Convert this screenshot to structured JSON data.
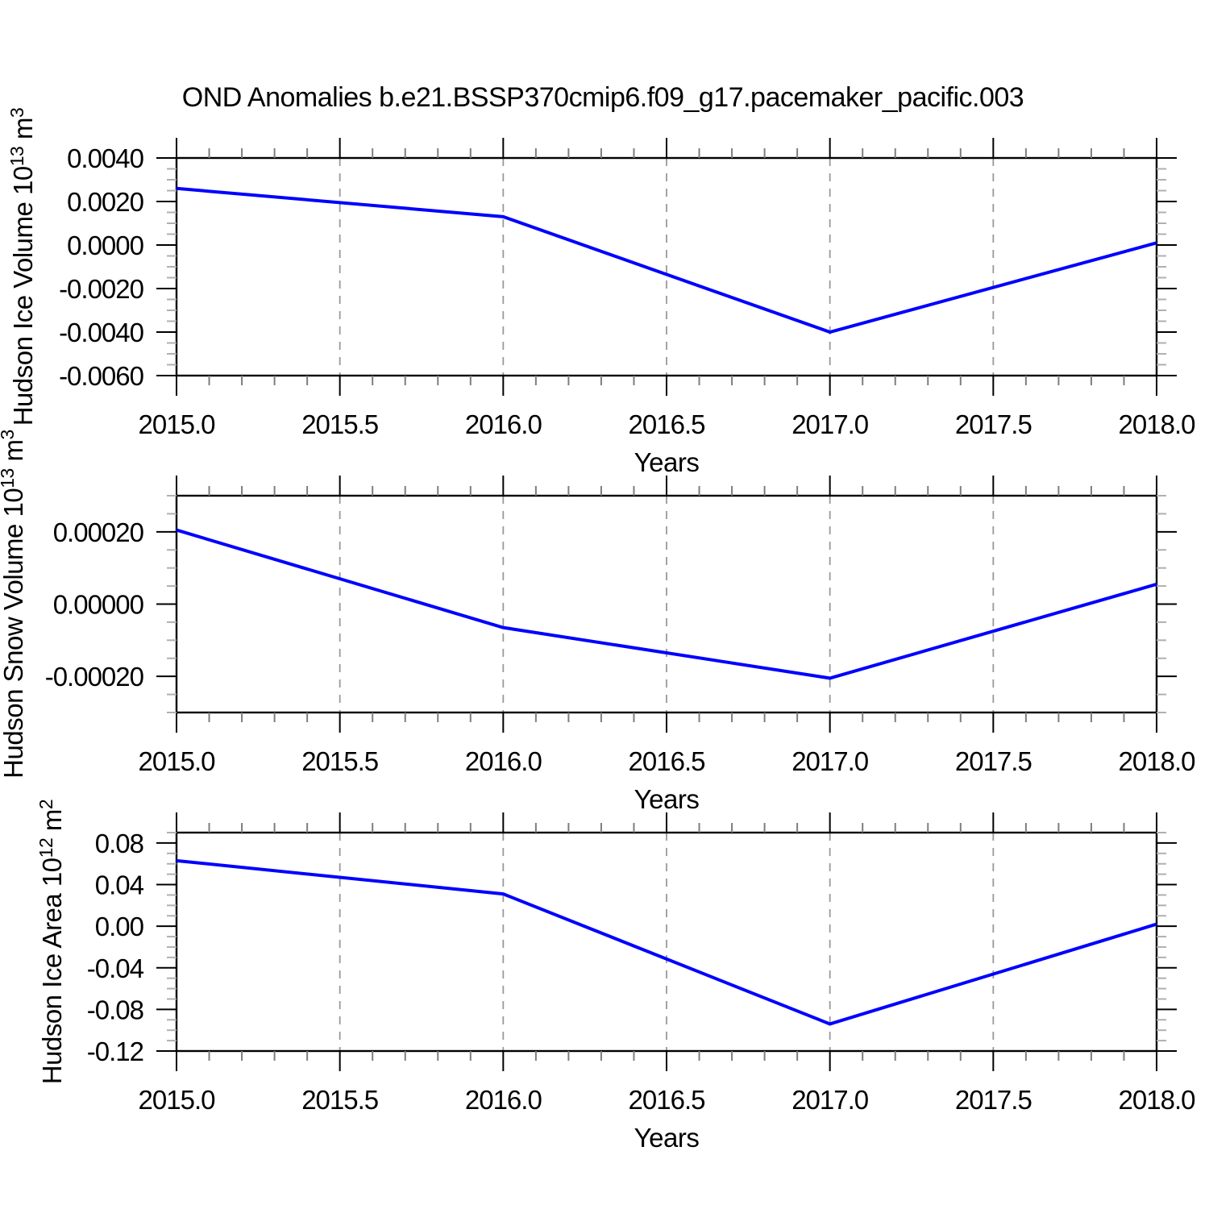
{
  "title": "OND Anomalies b.e21.BSSP370cmip6.f09_g17.pacemaker_pacific.003",
  "accent_color": "#0000ff",
  "chart_data": [
    {
      "type": "line",
      "panel": "top",
      "xlabel": "Years",
      "ylabel": "Hudson Ice Volume 10^13 m^3",
      "ylabel_parts": [
        {
          "t": "Hudson Ice Volume 10",
          "sup": false
        },
        {
          "t": "13",
          "sup": true
        },
        {
          "t": " m",
          "sup": false
        },
        {
          "t": "3",
          "sup": true
        }
      ],
      "x": [
        2015.0,
        2016.0,
        2017.0,
        2018.0
      ],
      "series": [
        {
          "name": "OND anomaly",
          "color": "#0000ff",
          "values": [
            0.0026,
            0.0013,
            -0.004,
            0.0001
          ]
        }
      ],
      "xlim": [
        2015.0,
        2018.0
      ],
      "ylim": [
        -0.006,
        0.004
      ],
      "xtick_values": [
        2015.0,
        2015.5,
        2016.0,
        2016.5,
        2017.0,
        2017.5,
        2018.0
      ],
      "xtick_labels": [
        "2015.0",
        "2015.5",
        "2016.0",
        "2016.5",
        "2017.0",
        "2017.5",
        "2018.0"
      ],
      "ytick_values": [
        0.004,
        0.002,
        0.0,
        -0.002,
        -0.004,
        -0.006
      ],
      "ytick_labels": [
        "0.0040",
        "0.0020",
        "0.0000",
        "-0.0020",
        "-0.0040",
        "-0.0060"
      ],
      "x_minor_step": 0.1,
      "y_minor_step": 0.0005,
      "grid": "vertical-dashed",
      "legend": "none"
    },
    {
      "type": "line",
      "panel": "middle",
      "xlabel": "Years",
      "ylabel": "Hudson Snow Volume 10^13 m^3",
      "ylabel_parts": [
        {
          "t": "Hudson Snow Volume 10",
          "sup": false
        },
        {
          "t": "13",
          "sup": true
        },
        {
          "t": " m",
          "sup": false
        },
        {
          "t": "3",
          "sup": true
        }
      ],
      "x": [
        2015.0,
        2016.0,
        2017.0,
        2018.0
      ],
      "series": [
        {
          "name": "OND anomaly",
          "color": "#0000ff",
          "values": [
            0.000205,
            -6.5e-05,
            -0.000205,
            5.5e-05
          ]
        }
      ],
      "xlim": [
        2015.0,
        2018.0
      ],
      "ylim": [
        -0.0003,
        0.0003
      ],
      "xtick_values": [
        2015.0,
        2015.5,
        2016.0,
        2016.5,
        2017.0,
        2017.5,
        2018.0
      ],
      "xtick_labels": [
        "2015.0",
        "2015.5",
        "2016.0",
        "2016.5",
        "2017.0",
        "2017.5",
        "2018.0"
      ],
      "ytick_values": [
        0.0002,
        0.0,
        -0.0002
      ],
      "ytick_labels": [
        "0.00020",
        "0.00000",
        "-0.00020"
      ],
      "x_minor_step": 0.1,
      "y_minor_step": 5e-05,
      "grid": "vertical-dashed",
      "legend": "none"
    },
    {
      "type": "line",
      "panel": "bottom",
      "xlabel": "Years",
      "ylabel": "Hudson Ice Area 10^12 m^2",
      "ylabel_parts": [
        {
          "t": "Hudson Ice Area 10",
          "sup": false
        },
        {
          "t": "12",
          "sup": true
        },
        {
          "t": " m",
          "sup": false
        },
        {
          "t": "2",
          "sup": true
        }
      ],
      "x": [
        2015.0,
        2016.0,
        2017.0,
        2018.0
      ],
      "series": [
        {
          "name": "OND anomaly",
          "color": "#0000ff",
          "values": [
            0.063,
            0.031,
            -0.094,
            0.002
          ]
        }
      ],
      "xlim": [
        2015.0,
        2018.0
      ],
      "ylim": [
        -0.12,
        0.09
      ],
      "xtick_values": [
        2015.0,
        2015.5,
        2016.0,
        2016.5,
        2017.0,
        2017.5,
        2018.0
      ],
      "xtick_labels": [
        "2015.0",
        "2015.5",
        "2016.0",
        "2016.5",
        "2017.0",
        "2017.5",
        "2018.0"
      ],
      "ytick_values": [
        0.08,
        0.04,
        0.0,
        -0.04,
        -0.08,
        -0.12
      ],
      "ytick_labels": [
        "0.08",
        "0.04",
        "0.00",
        "-0.04",
        "-0.08",
        "-0.12"
      ],
      "x_minor_step": 0.1,
      "y_minor_step": 0.01,
      "grid": "vertical-dashed",
      "legend": "none"
    }
  ]
}
